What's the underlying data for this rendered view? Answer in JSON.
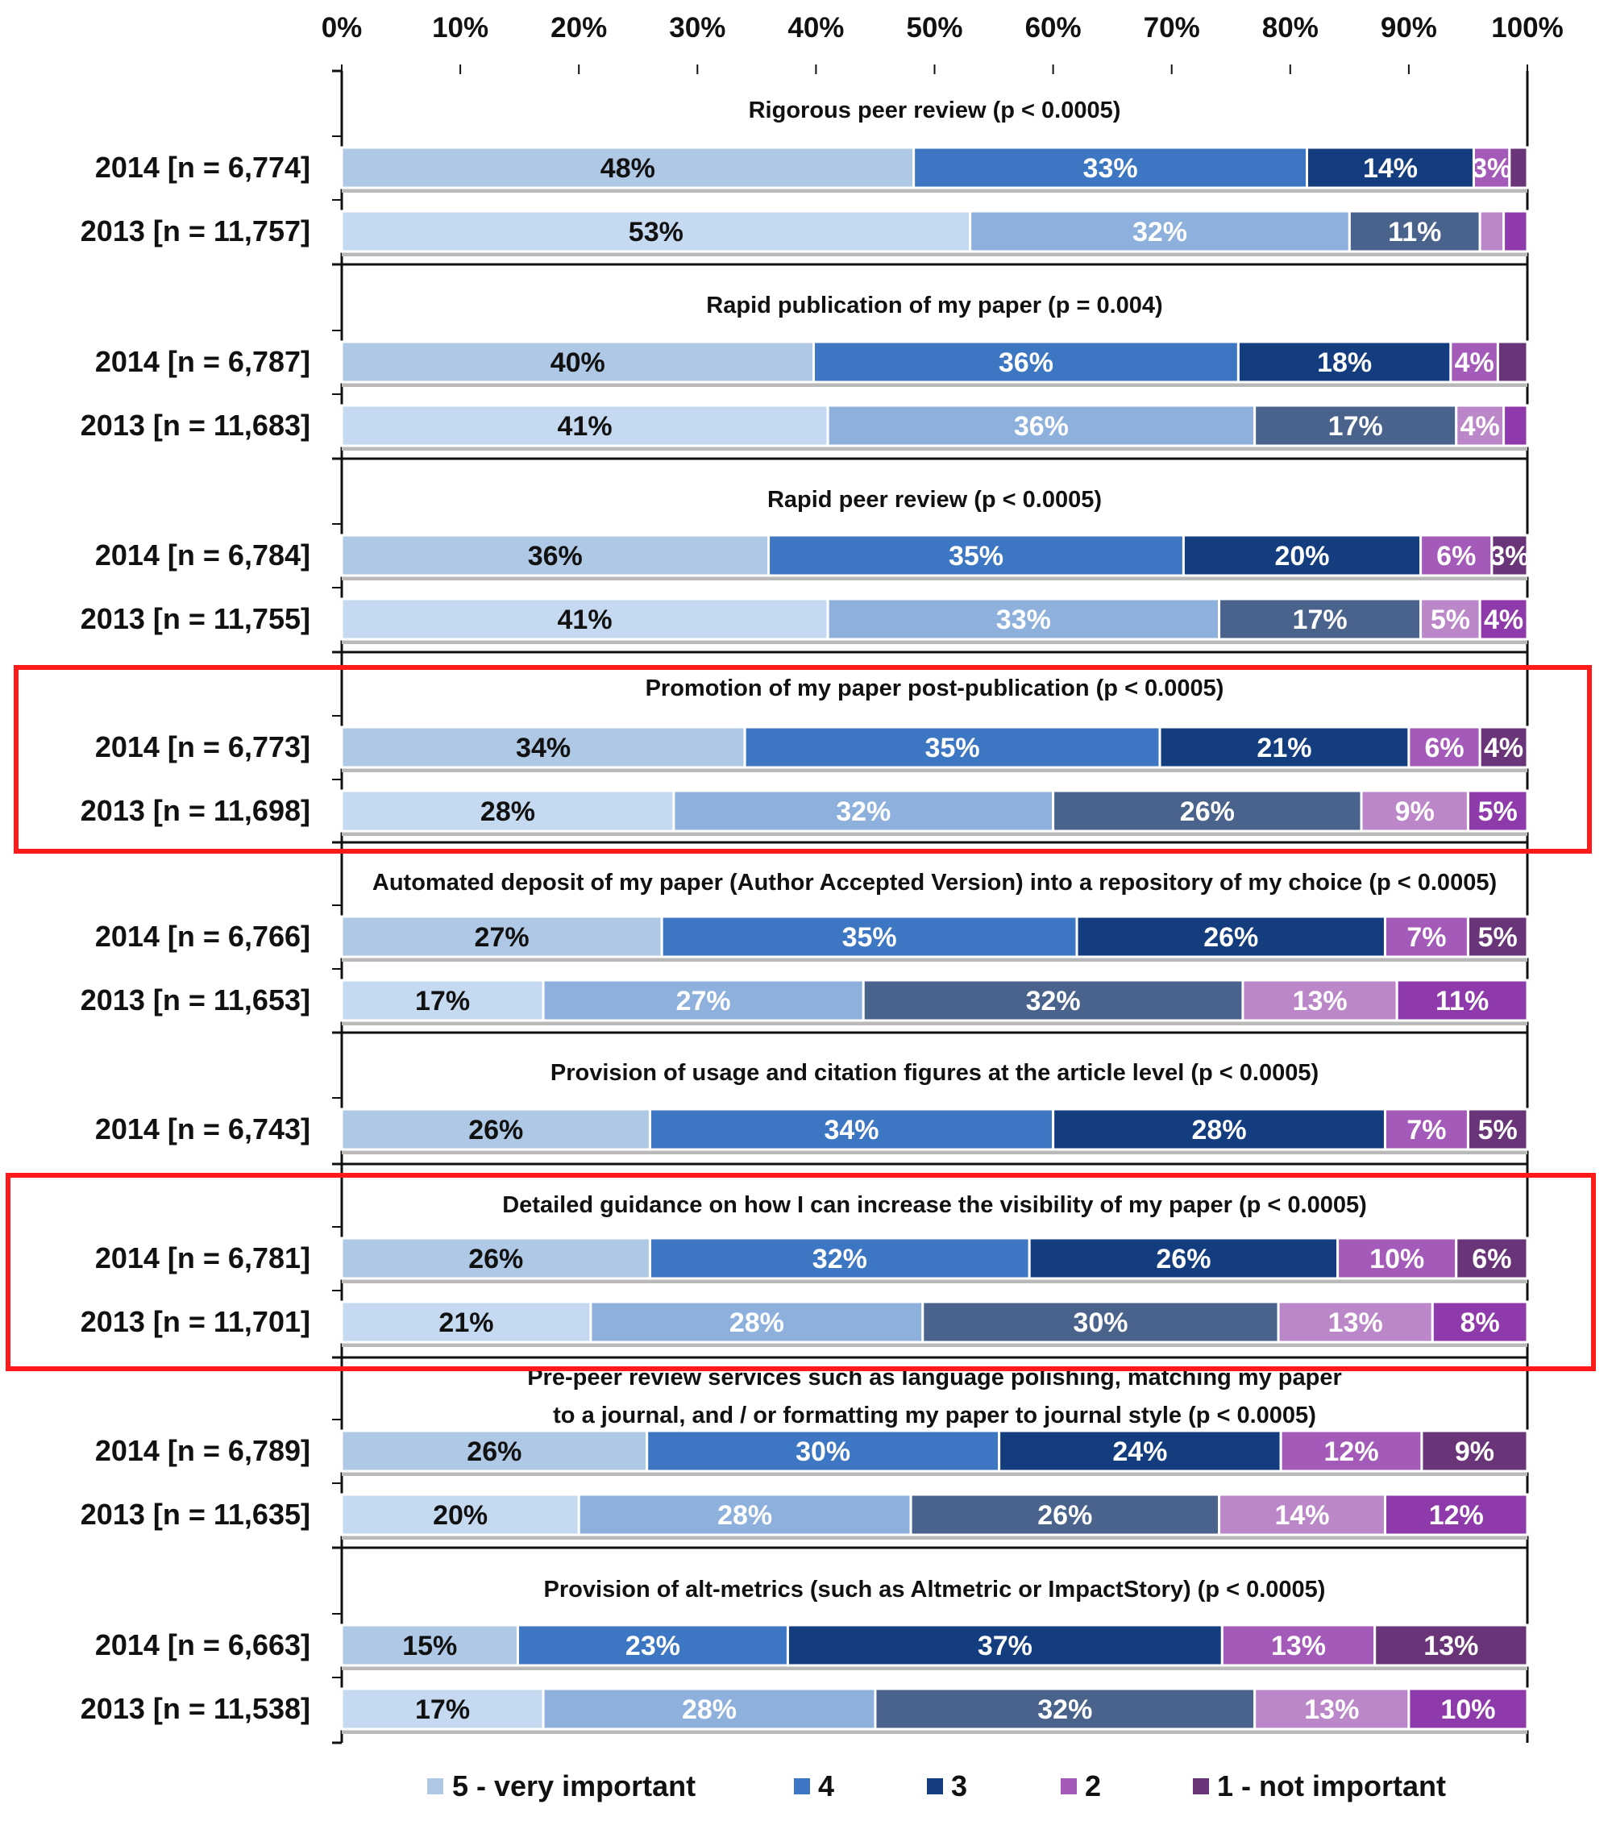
{
  "chart_data": {
    "type": "bar",
    "orientation": "horizontal",
    "stacked": true,
    "percent_scale": true,
    "xlim": [
      0,
      100
    ],
    "x_ticks": [
      "0%",
      "10%",
      "20%",
      "30%",
      "40%",
      "50%",
      "60%",
      "70%",
      "80%",
      "90%",
      "100%"
    ],
    "legend": {
      "position": "bottom",
      "entries": [
        "5 - very important",
        "4",
        "3",
        "2",
        "1 - not important"
      ]
    },
    "colors": {
      "2014": [
        "#aec8e6",
        "#3d76c3",
        "#143d80",
        "#a45ab8",
        "#6a3578"
      ],
      "2013": [
        "#c5d9f1",
        "#8eb0dc",
        "#49638c",
        "#bb87c9",
        "#8e3aaa"
      ]
    },
    "highlight_color": "#ff1a1a",
    "groups": [
      {
        "title": "Rigorous peer review (p < 0.0005)",
        "highlighted": false,
        "rows": [
          {
            "year": "2014",
            "label": "2014 [n = 6,774]",
            "values": [
              48,
              33,
              14,
              3,
              1.5
            ],
            "labels": [
              "48%",
              "33%",
              "14%",
              "3%",
              ""
            ]
          },
          {
            "year": "2013",
            "label": "2013 [n = 11,757]",
            "values": [
              53,
              32,
              11,
              2,
              2
            ],
            "labels": [
              "53%",
              "32%",
              "11%",
              "",
              ""
            ]
          }
        ]
      },
      {
        "title": "Rapid publication of my paper (p = 0.004)",
        "highlighted": false,
        "rows": [
          {
            "year": "2014",
            "label": "2014 [n = 6,787]",
            "values": [
              40,
              36,
              18,
              4,
              2.5
            ],
            "labels": [
              "40%",
              "36%",
              "18%",
              "4%",
              ""
            ]
          },
          {
            "year": "2013",
            "label": "2013 [n = 11,683]",
            "values": [
              41,
              36,
              17,
              4,
              2
            ],
            "labels": [
              "41%",
              "36%",
              "17%",
              "4%",
              ""
            ]
          }
        ]
      },
      {
        "title": "Rapid peer review (p < 0.0005)",
        "highlighted": false,
        "rows": [
          {
            "year": "2014",
            "label": "2014 [n = 6,784]",
            "values": [
              36,
              35,
              20,
              6,
              3
            ],
            "labels": [
              "36%",
              "35%",
              "20%",
              "6%",
              "3%"
            ]
          },
          {
            "year": "2013",
            "label": "2013 [n = 11,755]",
            "values": [
              41,
              33,
              17,
              5,
              4
            ],
            "labels": [
              "41%",
              "33%",
              "17%",
              "5%",
              "4%"
            ]
          }
        ]
      },
      {
        "title": "Promotion of my paper post-publication (p < 0.0005)",
        "highlighted": true,
        "rows": [
          {
            "year": "2014",
            "label": "2014 [n = 6,773]",
            "values": [
              34,
              35,
              21,
              6,
              4
            ],
            "labels": [
              "34%",
              "35%",
              "21%",
              "6%",
              "4%"
            ]
          },
          {
            "year": "2013",
            "label": "2013 [n = 11,698]",
            "values": [
              28,
              32,
              26,
              9,
              5
            ],
            "labels": [
              "28%",
              "32%",
              "26%",
              "9%",
              "5%"
            ]
          }
        ]
      },
      {
        "title": "Automated deposit of my paper (Author Accepted Version) into a repository of my choice (p < 0.0005)",
        "highlighted": false,
        "rows": [
          {
            "year": "2014",
            "label": "2014 [n = 6,766]",
            "values": [
              27,
              35,
              26,
              7,
              5
            ],
            "labels": [
              "27%",
              "35%",
              "26%",
              "7%",
              "5%"
            ]
          },
          {
            "year": "2013",
            "label": "2013 [n = 11,653]",
            "values": [
              17,
              27,
              32,
              13,
              11
            ],
            "labels": [
              "17%",
              "27%",
              "32%",
              "13%",
              "11%"
            ]
          }
        ]
      },
      {
        "title": "Provision of usage and citation figures at the article level (p < 0.0005)",
        "highlighted": false,
        "rows": [
          {
            "year": "2014",
            "label": "2014 [n = 6,743]",
            "values": [
              26,
              34,
              28,
              7,
              5
            ],
            "labels": [
              "26%",
              "34%",
              "28%",
              "7%",
              "5%"
            ]
          }
        ]
      },
      {
        "title": "Detailed guidance on how I can increase the visibility of my paper (p < 0.0005)",
        "highlighted": true,
        "rows": [
          {
            "year": "2014",
            "label": "2014 [n = 6,781]",
            "values": [
              26,
              32,
              26,
              10,
              6
            ],
            "labels": [
              "26%",
              "32%",
              "26%",
              "10%",
              "6%"
            ]
          },
          {
            "year": "2013",
            "label": "2013 [n = 11,701]",
            "values": [
              21,
              28,
              30,
              13,
              8
            ],
            "labels": [
              "21%",
              "28%",
              "30%",
              "13%",
              "8%"
            ]
          }
        ]
      },
      {
        "title": "Pre-peer review services such as language polishing, matching my paper",
        "title_line2": "to a journal, and / or formatting my paper to journal style (p < 0.0005)",
        "highlighted": false,
        "rows": [
          {
            "year": "2014",
            "label": "2014 [n = 6,789]",
            "values": [
              26,
              30,
              24,
              12,
              9
            ],
            "labels": [
              "26%",
              "30%",
              "24%",
              "12%",
              "9%"
            ]
          },
          {
            "year": "2013",
            "label": "2013 [n = 11,635]",
            "values": [
              20,
              28,
              26,
              14,
              12
            ],
            "labels": [
              "20%",
              "28%",
              "26%",
              "14%",
              "12%"
            ]
          }
        ]
      },
      {
        "title": "Provision of alt-metrics (such as Altmetric or ImpactStory) (p < 0.0005)",
        "highlighted": false,
        "rows": [
          {
            "year": "2014",
            "label": "2014 [n = 6,663]",
            "values": [
              15,
              23,
              37,
              13,
              13
            ],
            "labels": [
              "15%",
              "23%",
              "37%",
              "13%",
              "13%"
            ]
          },
          {
            "year": "2013",
            "label": "2013 [n = 11,538]",
            "values": [
              17,
              28,
              32,
              13,
              10
            ],
            "labels": [
              "17%",
              "28%",
              "32%",
              "13%",
              "10%"
            ]
          }
        ]
      }
    ]
  }
}
